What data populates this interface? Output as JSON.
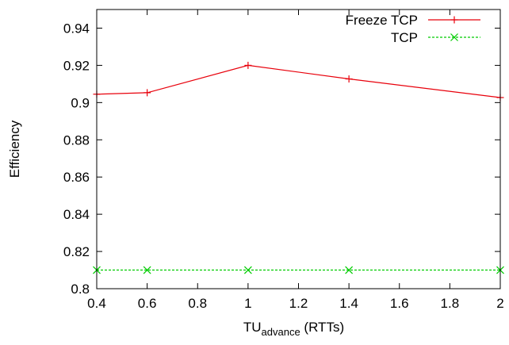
{
  "chart_data": {
    "type": "line",
    "xlabel": {
      "main": "TU",
      "sub": "advance",
      "rest": " (RTTs)"
    },
    "ylabel": "Efficiency",
    "xlim": [
      0.4,
      2.0
    ],
    "ylim": [
      0.8,
      0.95
    ],
    "xticks": [
      0.4,
      0.6,
      0.8,
      1.0,
      1.2,
      1.4,
      1.6,
      1.8,
      2.0
    ],
    "xtick_labels": [
      "0.4",
      "0.6",
      "0.8",
      "1",
      "1.2",
      "1.4",
      "1.6",
      "1.8",
      "2"
    ],
    "yticks": [
      0.8,
      0.82,
      0.84,
      0.86,
      0.88,
      0.9,
      0.92,
      0.94
    ],
    "ytick_labels": [
      "0.8",
      "0.82",
      "0.84",
      "0.86",
      "0.88",
      "0.9",
      "0.92",
      "0.94"
    ],
    "grid": false,
    "legend_position": "top-right",
    "series": [
      {
        "name": "Freeze TCP",
        "color": "#e8000b",
        "line_style": "solid",
        "marker": "plus",
        "x": [
          0.4,
          0.6,
          1.0,
          1.4,
          2.0
        ],
        "y": [
          0.9045,
          0.9053,
          0.92,
          0.9127,
          0.9027
        ]
      },
      {
        "name": "TCP",
        "color": "#00cc00",
        "line_style": "dashed",
        "marker": "cross",
        "x": [
          0.4,
          0.6,
          1.0,
          1.4,
          2.0
        ],
        "y": [
          0.81,
          0.81,
          0.81,
          0.81,
          0.81
        ]
      }
    ]
  }
}
